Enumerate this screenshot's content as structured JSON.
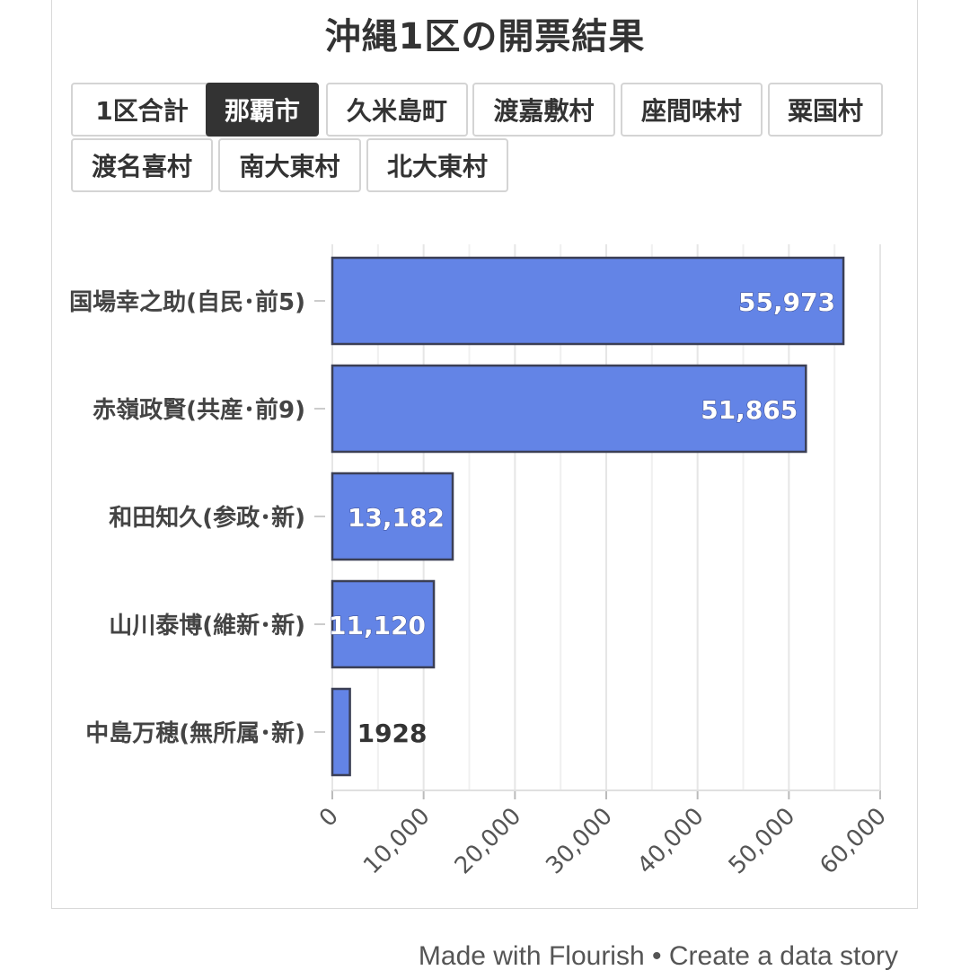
{
  "title": "沖縄1区の開票結果",
  "tabs": [
    {
      "label": "1区合計",
      "active": false
    },
    {
      "label": "那覇市",
      "active": true
    },
    {
      "label": "久米島町",
      "active": false
    },
    {
      "label": "渡嘉敷村",
      "active": false
    },
    {
      "label": "座間味村",
      "active": false
    },
    {
      "label": "粟国村",
      "active": false
    },
    {
      "label": "渡名喜村",
      "active": false
    },
    {
      "label": "南大東村",
      "active": false
    },
    {
      "label": "北大東村",
      "active": false
    }
  ],
  "chart_data": {
    "type": "bar",
    "orientation": "horizontal",
    "categories": [
      "国場幸之助(自民･前5)",
      "赤嶺政賢(共産･前9)",
      "和田知久(参政･新)",
      "山川泰博(維新･新)",
      "中島万穂(無所属･新)"
    ],
    "values": [
      55973,
      51865,
      13182,
      11120,
      1928
    ],
    "value_labels": [
      "55,973",
      "51,865",
      "13,182",
      "11,120",
      "1928"
    ],
    "xlim": [
      0,
      60000
    ],
    "xticks": [
      0,
      10000,
      20000,
      30000,
      40000,
      50000,
      60000
    ],
    "xtick_labels": [
      "0",
      "10,000",
      "20,000",
      "30,000",
      "40,000",
      "50,000",
      "60,000"
    ],
    "bar_color": "#6384e6",
    "grid": true,
    "title": "",
    "xlabel": "",
    "ylabel": ""
  },
  "footer": {
    "made_with": "Made with Flourish",
    "separator": "•",
    "cta": "Create a data story"
  }
}
